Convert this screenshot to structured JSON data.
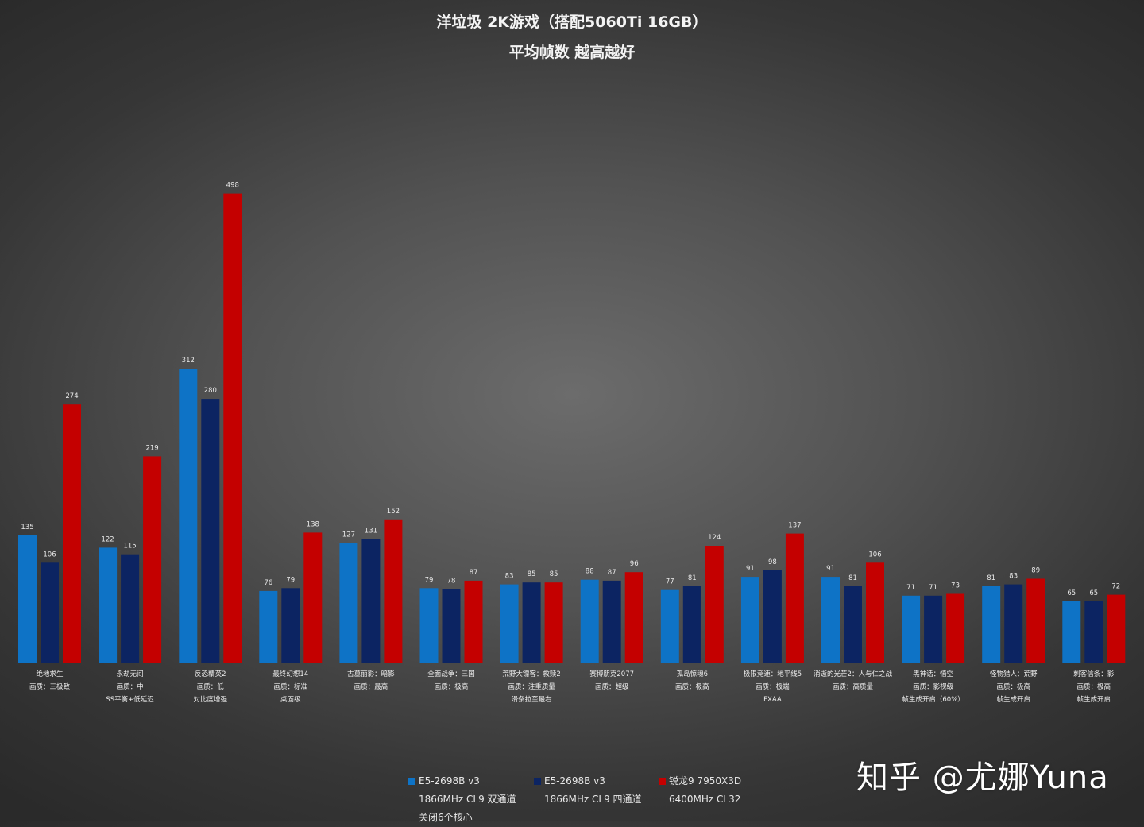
{
  "title": "洋垃圾 2K游戏（搭配5060Ti 16GB）",
  "subtitle": "平均帧数 越高越好",
  "chart_data": {
    "type": "bar",
    "title": "洋垃圾 2K游戏（搭配5060Ti 16GB）",
    "subtitle": "平均帧数 越高越好",
    "ylim": [
      0,
      520
    ],
    "grid": false,
    "legend_position": "bottom",
    "categories": [
      [
        "绝地求生",
        "画质：三极致"
      ],
      [
        "永劫无间",
        "画质：中",
        "SS平衡+低延迟"
      ],
      [
        "反恐精英2",
        "画质：低",
        "对比度增强"
      ],
      [
        "最终幻想14",
        "画质：标准",
        "桌面级"
      ],
      [
        "古墓丽影：暗影",
        "画质：最高"
      ],
      [
        "全面战争：三国",
        "画质：极高"
      ],
      [
        "荒野大镖客：救赎2",
        "画质：注重质量",
        "滑条拉至最右"
      ],
      [
        "赛博朋克2077",
        "画质：超级"
      ],
      [
        "孤岛惊魂6",
        "画质：极高"
      ],
      [
        "极限竞速：地平线5",
        "画质：极端",
        "FXAA"
      ],
      [
        "消逝的光芒2：人与仁之战",
        "画质：高质量"
      ],
      [
        "黑神话：悟空",
        "画质：影视级",
        "帧生成开启（60%）"
      ],
      [
        "怪物猎人：荒野",
        "画质：极高",
        "帧生成开启"
      ],
      [
        "刺客信条：影",
        "画质：极高",
        "帧生成开启"
      ]
    ],
    "series": [
      {
        "name": "E5-2698B v3",
        "name_lines": [
          "1866MHz CL9 双通道",
          "关闭6个核心"
        ],
        "color": "#0e73c6",
        "values": [
          135,
          122,
          312,
          76,
          127,
          79,
          83,
          88,
          77,
          91,
          91,
          71,
          81,
          65
        ]
      },
      {
        "name": "E5-2698B v3",
        "name_lines": [
          "1866MHz CL9 四通道"
        ],
        "color": "#0c2462",
        "values": [
          106,
          115,
          280,
          79,
          131,
          78,
          85,
          87,
          81,
          98,
          81,
          71,
          83,
          65
        ]
      },
      {
        "name": "锐龙9 7950X3D",
        "name_lines": [
          "6400MHz CL32"
        ],
        "color": "#c40000",
        "values": [
          274,
          219,
          498,
          138,
          152,
          87,
          85,
          96,
          124,
          137,
          106,
          73,
          89,
          72
        ]
      }
    ]
  },
  "watermark": "知乎 @尤娜Yuna"
}
